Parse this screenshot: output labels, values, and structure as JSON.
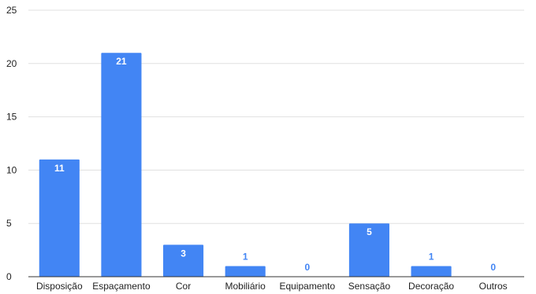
{
  "chart_data": {
    "type": "bar",
    "categories": [
      "Disposição",
      "Espaçamento",
      "Cor",
      "Mobiliário",
      "Equipamento",
      "Sensação",
      "Decoração",
      "Outros"
    ],
    "values": [
      11,
      21,
      3,
      1,
      0,
      5,
      1,
      0
    ],
    "data_labels": [
      "11",
      "21",
      "3",
      "1",
      "0",
      "5",
      "1",
      "0"
    ],
    "y_ticks": [
      "0",
      "5",
      "10",
      "15",
      "20",
      "25"
    ],
    "ylim": [
      0,
      25
    ],
    "title": "",
    "xlabel": "",
    "ylabel": "",
    "grid": true,
    "legend": "none",
    "bar_color": "#4285f4",
    "label_inside_color": "#ffffff",
    "label_outside_color": "#4285f4"
  }
}
